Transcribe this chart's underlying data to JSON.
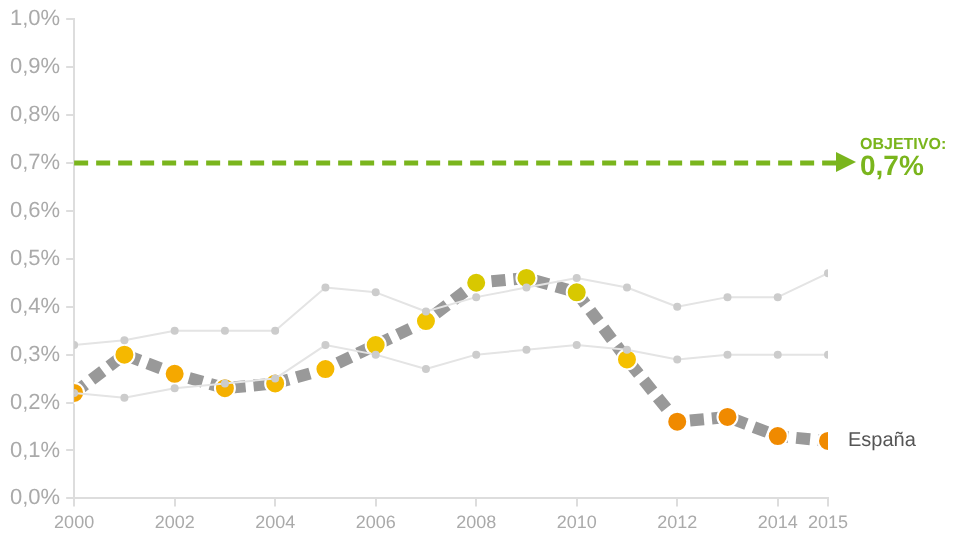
{
  "chart_data": {
    "type": "line",
    "x": [
      2000,
      2001,
      2002,
      2003,
      2004,
      2005,
      2006,
      2007,
      2008,
      2009,
      2010,
      2011,
      2012,
      2013,
      2014,
      2015
    ],
    "series": [
      {
        "color": "#e4e4e4",
        "marker": "circle",
        "line_style": "solid",
        "values": [
          0.32,
          0.33,
          0.35,
          0.35,
          0.35,
          0.44,
          0.43,
          0.39,
          0.42,
          0.44,
          0.46,
          0.44,
          0.4,
          0.42,
          0.42,
          0.47
        ]
      },
      {
        "color": "#e4e4e4",
        "marker": "circle",
        "line_style": "solid",
        "values": [
          0.22,
          0.21,
          0.23,
          0.24,
          0.25,
          0.32,
          0.3,
          0.27,
          0.3,
          0.31,
          0.32,
          0.31,
          0.29,
          0.3,
          0.3,
          0.3
        ]
      },
      {
        "name": "España",
        "color": "#999999",
        "marker": "circle",
        "line_style": "dashed",
        "colors": [
          "#f5a300",
          "#f5b800",
          "#f5a800",
          "#f5b000",
          "#f5b800",
          "#f5b800",
          "#f0c400",
          "#f0c400",
          "#d8c800",
          "#d8c800",
          "#d8c800",
          "#f5c000",
          "#f08a00",
          "#f08a00",
          "#f08a00",
          "#f08a00"
        ],
        "values": [
          0.22,
          0.3,
          0.26,
          0.23,
          0.24,
          0.27,
          0.32,
          0.37,
          0.45,
          0.46,
          0.43,
          0.29,
          0.16,
          0.17,
          0.13,
          0.12
        ]
      }
    ],
    "xlim": [
      2000,
      2015
    ],
    "xticks": [
      2000,
      2002,
      2004,
      2006,
      2008,
      2010,
      2012,
      2014,
      2015
    ],
    "ylim": [
      0,
      1
    ],
    "yticks": [
      {
        "value": 0,
        "label": "0,0%"
      },
      {
        "value": 0.1,
        "label": "0,1%"
      },
      {
        "value": 0.2,
        "label": "0,2%"
      },
      {
        "value": 0.3,
        "label": "0,3%"
      },
      {
        "value": 0.4,
        "label": "0,4%"
      },
      {
        "value": 0.5,
        "label": "0,5%"
      },
      {
        "value": 0.6,
        "label": "0,6%"
      },
      {
        "value": 0.7,
        "label": "0,7%"
      },
      {
        "value": 0.8,
        "label": "0,8%"
      },
      {
        "value": 0.9,
        "label": "0,9%"
      },
      {
        "value": 1,
        "label": "1,0%"
      }
    ],
    "ref_lines": [
      {
        "axis": "y",
        "value": 0.7,
        "label": "OBJETIVO:\n0,7%",
        "color": "#7ab51d",
        "line_style": "dashed"
      }
    ],
    "grid": false,
    "legend": false
  }
}
